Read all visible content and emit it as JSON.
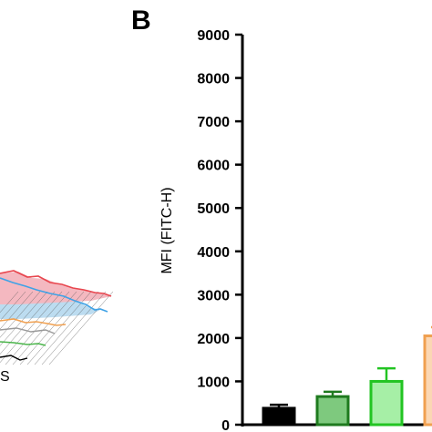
{
  "panel_label": "B",
  "left_panel_partial_label": "S",
  "chart_data": {
    "type": "bar",
    "ylabel": "MFI (FITC-H)",
    "ylim": [
      0,
      9000
    ],
    "yticks": [
      0,
      1000,
      2000,
      3000,
      4000,
      5000,
      6000,
      7000,
      8000,
      9000
    ],
    "bars": [
      {
        "value": 380,
        "error": 80,
        "color": "#000000",
        "fill": "#000000"
      },
      {
        "value": 650,
        "error": 110,
        "color": "#1e7a1e",
        "fill": "#7ec97e"
      },
      {
        "value": 1000,
        "error": 300,
        "color": "#22c422",
        "fill": "#a6efa6"
      },
      {
        "value": 2050,
        "error": 200,
        "color": "#f0a050",
        "fill": "#fbd7b3"
      }
    ]
  },
  "left_panel_colors": {
    "red": "#e8464e",
    "blue": "#3fa2e6",
    "orange": "#f0a050",
    "green": "#4ab54a",
    "red_fill": "#f4b8c0",
    "blue_fill": "#bcdcf0"
  }
}
